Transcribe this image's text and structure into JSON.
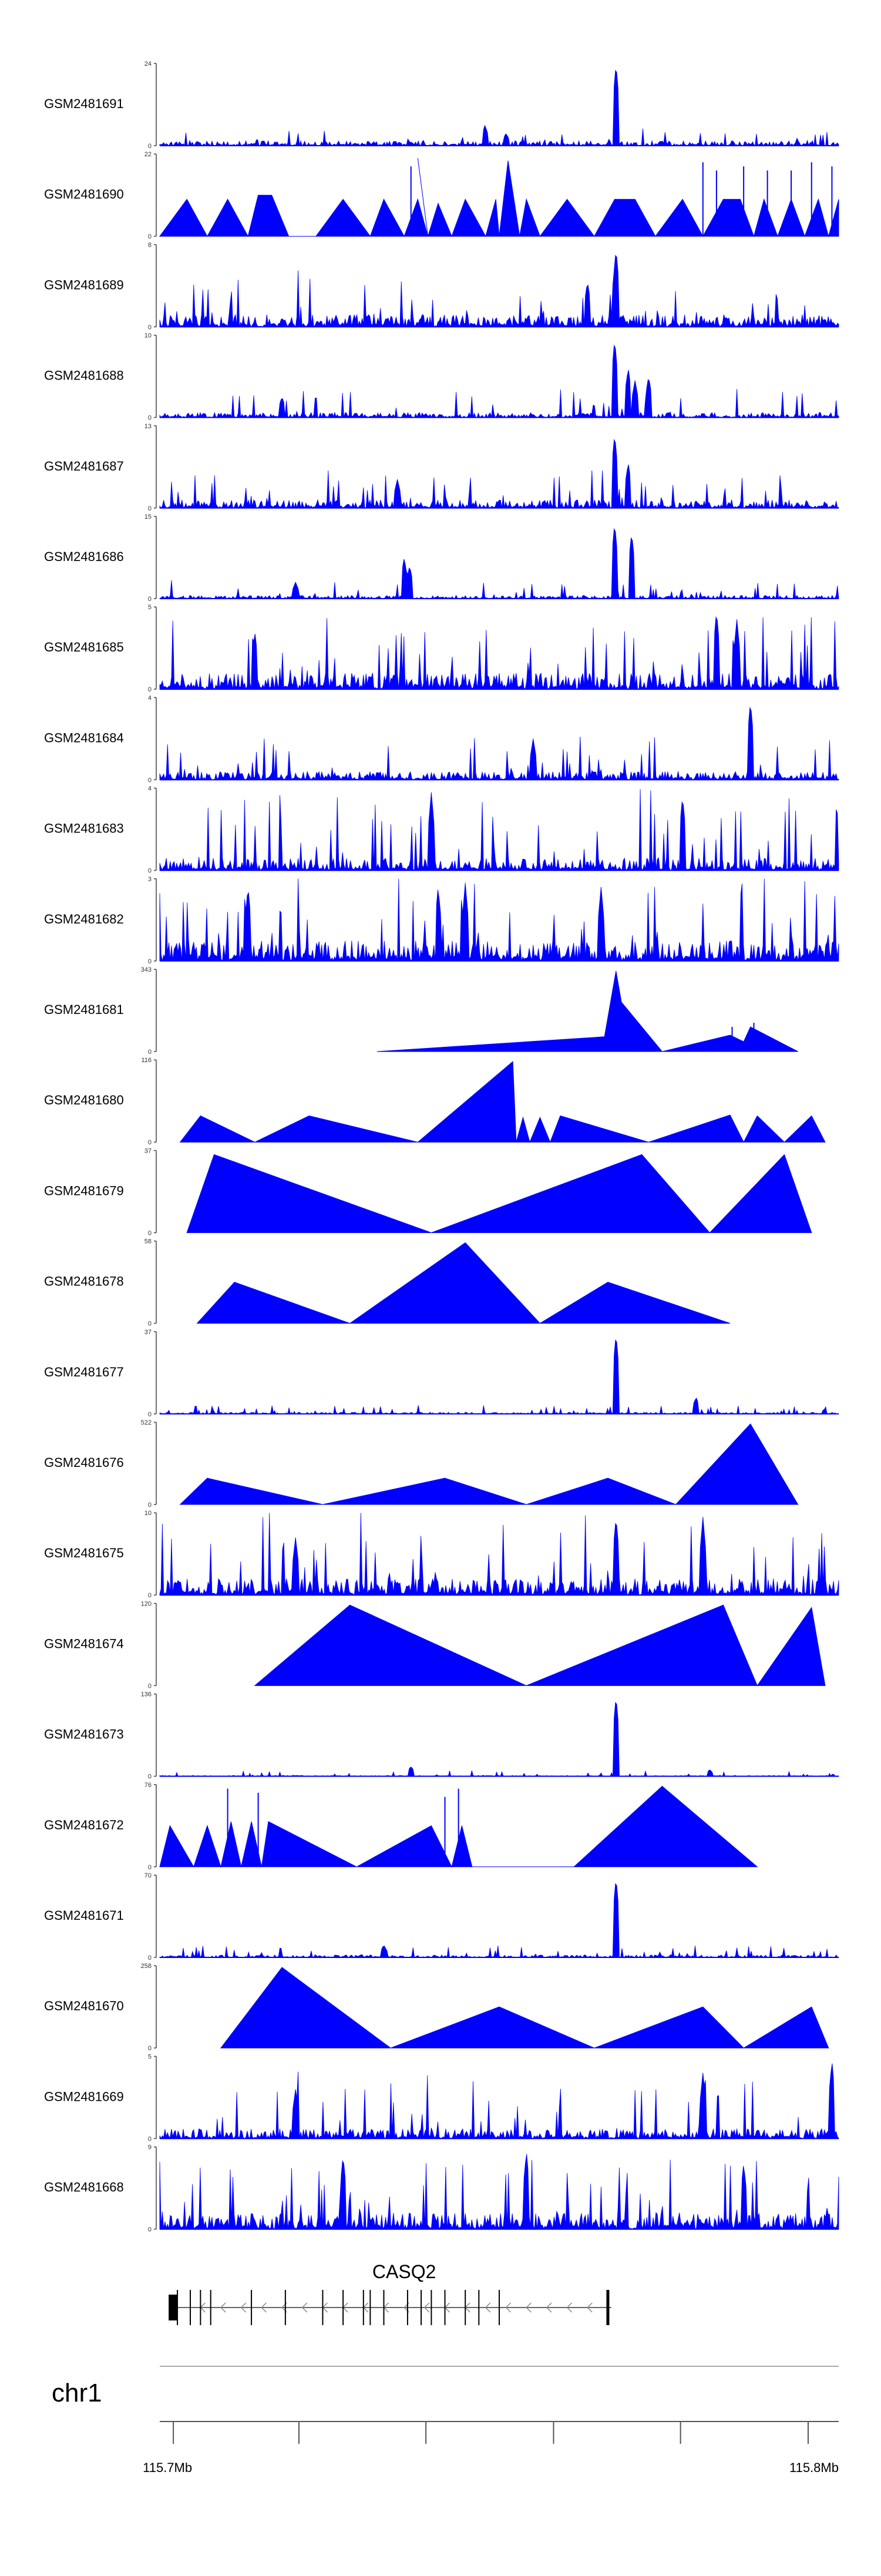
{
  "chart_data": {
    "type": "genome-browser-tracks",
    "track_type": "area",
    "track_color": "#0000ff",
    "tracks": [
      {
        "name": "GSM2481691",
        "ymax": "24",
        "ymin": "0",
        "shape": "dense",
        "seed": 11,
        "base": 0.06,
        "noise": 0.1,
        "peaks": [
          [
            0.672,
            1.0
          ],
          [
            0.479,
            0.25
          ],
          [
            0.51,
            0.15
          ]
        ]
      },
      {
        "name": "GSM2481690",
        "ymax": "22",
        "ymin": "0",
        "shape": "triangles",
        "seed": 12,
        "verts": [
          [
            0,
            0
          ],
          [
            0.04,
            0.45
          ],
          [
            0.07,
            0
          ],
          [
            0.1,
            0.45
          ],
          [
            0.13,
            0
          ],
          [
            0.145,
            0.5
          ],
          [
            0.165,
            0.5
          ],
          [
            0.19,
            0
          ],
          [
            0.23,
            0
          ],
          [
            0.27,
            0.45
          ],
          [
            0.31,
            0
          ],
          [
            0.33,
            0.45
          ],
          [
            0.36,
            0
          ],
          [
            0.38,
            0.45
          ],
          [
            0.395,
            0
          ],
          [
            0.38,
            0.95
          ],
          [
            0.395,
            0
          ],
          [
            0.41,
            0.4
          ],
          [
            0.43,
            0
          ],
          [
            0.45,
            0.45
          ],
          [
            0.48,
            0
          ],
          [
            0.495,
            0.45
          ],
          [
            0.5,
            0
          ],
          [
            0.513,
            0.92
          ],
          [
            0.53,
            0
          ],
          [
            0.54,
            0.45
          ],
          [
            0.56,
            0
          ],
          [
            0.6,
            0.45
          ],
          [
            0.64,
            0
          ],
          [
            0.67,
            0.45
          ],
          [
            0.7,
            0.45
          ],
          [
            0.73,
            0
          ],
          [
            0.77,
            0.45
          ],
          [
            0.8,
            0
          ],
          [
            0.83,
            0.45
          ],
          [
            0.855,
            0.45
          ],
          [
            0.875,
            0
          ],
          [
            0.89,
            0.45
          ],
          [
            0.91,
            0
          ],
          [
            0.93,
            0.45
          ],
          [
            0.95,
            0
          ],
          [
            0.97,
            0.45
          ],
          [
            0.985,
            0
          ],
          [
            1,
            0.45
          ],
          [
            1,
            0
          ]
        ],
        "spikes": [
          [
            0.37,
            0.85
          ],
          [
            0.8,
            0.9
          ],
          [
            0.82,
            0.8
          ],
          [
            0.86,
            0.85
          ],
          [
            0.895,
            0.8
          ],
          [
            0.93,
            0.8
          ],
          [
            0.96,
            0.9
          ],
          [
            0.99,
            0.85
          ]
        ]
      },
      {
        "name": "GSM2481689",
        "ymax": "8",
        "ymin": "0",
        "shape": "dense",
        "seed": 13,
        "base": 0.15,
        "noise": 0.35,
        "peaks": [
          [
            0.672,
            0.95
          ],
          [
            0.63,
            0.55
          ]
        ]
      },
      {
        "name": "GSM2481688",
        "ymax": "10",
        "ymin": "0",
        "shape": "dense",
        "seed": 14,
        "base": 0.06,
        "noise": 0.2,
        "peaks": [
          [
            0.67,
            0.95
          ],
          [
            0.69,
            0.6
          ],
          [
            0.7,
            0.45
          ],
          [
            0.72,
            0.5
          ],
          [
            0.18,
            0.25
          ]
        ]
      },
      {
        "name": "GSM2481687",
        "ymax": "13",
        "ymin": "0",
        "shape": "dense",
        "seed": 15,
        "base": 0.1,
        "noise": 0.25,
        "peaks": [
          [
            0.67,
            0.9
          ],
          [
            0.69,
            0.55
          ],
          [
            0.35,
            0.35
          ]
        ]
      },
      {
        "name": "GSM2481686",
        "ymax": "15",
        "ymin": "0",
        "shape": "dense",
        "seed": 16,
        "base": 0.04,
        "noise": 0.12,
        "peaks": [
          [
            0.67,
            0.92
          ],
          [
            0.695,
            0.8
          ],
          [
            0.36,
            0.5
          ],
          [
            0.368,
            0.4
          ],
          [
            0.2,
            0.2
          ]
        ]
      },
      {
        "name": "GSM2481685",
        "ymax": "5",
        "ymin": "0",
        "shape": "dense",
        "seed": 17,
        "base": 0.2,
        "noise": 0.5,
        "peaks": [
          [
            0.82,
            0.95
          ],
          [
            0.85,
            0.85
          ],
          [
            0.14,
            0.7
          ]
        ]
      },
      {
        "name": "GSM2481684",
        "ymax": "4",
        "ymin": "0",
        "shape": "dense",
        "seed": 18,
        "base": 0.1,
        "noise": 0.3,
        "peaks": [
          [
            0.87,
            0.95
          ],
          [
            0.55,
            0.5
          ]
        ]
      },
      {
        "name": "GSM2481683",
        "ymax": "4",
        "ymin": "0",
        "shape": "dense",
        "seed": 19,
        "base": 0.15,
        "noise": 0.55,
        "peaks": [
          [
            0.4,
            0.95
          ],
          [
            0.77,
            0.9
          ]
        ]
      },
      {
        "name": "GSM2481682",
        "ymax": "3",
        "ymin": "0",
        "shape": "dense",
        "seed": 20,
        "base": 0.25,
        "noise": 0.6,
        "peaks": [
          [
            0.13,
            0.9
          ],
          [
            0.41,
            0.9
          ],
          [
            0.45,
            0.95
          ],
          [
            0.65,
            0.9
          ]
        ]
      },
      {
        "name": "GSM2481681",
        "ymax": "343",
        "ymin": "0",
        "shape": "triangles",
        "seed": 21,
        "verts": [
          [
            0.32,
            0
          ],
          [
            0.655,
            0.18
          ],
          [
            0.672,
            0.98
          ],
          [
            0.68,
            0.6
          ],
          [
            0.74,
            0
          ],
          [
            0.84,
            0.2
          ],
          [
            0.86,
            0.12
          ],
          [
            0.87,
            0.3
          ],
          [
            0.94,
            0
          ]
        ],
        "spikes": [
          [
            0.843,
            0.3
          ],
          [
            0.875,
            0.35
          ]
        ]
      },
      {
        "name": "GSM2481680",
        "ymax": "116",
        "ymin": "0",
        "shape": "triangles",
        "seed": 22,
        "verts": [
          [
            0.03,
            0
          ],
          [
            0.06,
            0.32
          ],
          [
            0.14,
            0
          ],
          [
            0.22,
            0.32
          ],
          [
            0.38,
            0
          ],
          [
            0.52,
            0.98
          ],
          [
            0.525,
            0
          ],
          [
            0.535,
            0.3
          ],
          [
            0.545,
            0
          ],
          [
            0.56,
            0.3
          ],
          [
            0.575,
            0
          ],
          [
            0.59,
            0.32
          ],
          [
            0.72,
            0
          ],
          [
            0.84,
            0.33
          ],
          [
            0.86,
            0
          ],
          [
            0.88,
            0.32
          ],
          [
            0.92,
            0
          ],
          [
            0.96,
            0.32
          ],
          [
            0.98,
            0
          ]
        ],
        "spikes": []
      },
      {
        "name": "GSM2481679",
        "ymax": "37",
        "ymin": "0",
        "shape": "triangles",
        "seed": 23,
        "verts": [
          [
            0.04,
            0
          ],
          [
            0.08,
            0.95
          ],
          [
            0.4,
            0
          ],
          [
            0.71,
            0.95
          ],
          [
            0.81,
            0
          ],
          [
            0.92,
            0.95
          ],
          [
            0.96,
            0
          ]
        ],
        "spikes": [
          [
            0.085,
            0.8
          ]
        ]
      },
      {
        "name": "GSM2481678",
        "ymax": "58",
        "ymin": "0",
        "shape": "triangles",
        "seed": 24,
        "verts": [
          [
            0.055,
            0
          ],
          [
            0.11,
            0.5
          ],
          [
            0.28,
            0
          ],
          [
            0.45,
            0.98
          ],
          [
            0.56,
            0
          ],
          [
            0.66,
            0.5
          ],
          [
            0.84,
            0
          ]
        ],
        "spikes": [
          [
            0.115,
            0.35
          ]
        ]
      },
      {
        "name": "GSM2481677",
        "ymax": "37",
        "ymin": "0",
        "shape": "dense",
        "seed": 25,
        "base": 0.02,
        "noise": 0.06,
        "peaks": [
          [
            0.672,
            0.98
          ],
          [
            0.79,
            0.2
          ]
        ]
      },
      {
        "name": "GSM2481676",
        "ymax": "522",
        "ymin": "0",
        "shape": "triangles",
        "seed": 26,
        "verts": [
          [
            0.03,
            0
          ],
          [
            0.07,
            0.32
          ],
          [
            0.24,
            0
          ],
          [
            0.42,
            0.32
          ],
          [
            0.54,
            0
          ],
          [
            0.66,
            0.32
          ],
          [
            0.76,
            0
          ],
          [
            0.87,
            0.98
          ],
          [
            0.94,
            0
          ]
        ],
        "spikes": []
      },
      {
        "name": "GSM2481675",
        "ymax": "10",
        "ymin": "0",
        "shape": "dense",
        "seed": 27,
        "base": 0.2,
        "noise": 0.55,
        "peaks": [
          [
            0.672,
            0.95
          ],
          [
            0.8,
            0.95
          ],
          [
            0.2,
            0.7
          ]
        ]
      },
      {
        "name": "GSM2481674",
        "ymax": "120",
        "ymin": "0",
        "shape": "triangles",
        "seed": 28,
        "verts": [
          [
            0.14,
            0
          ],
          [
            0.28,
            0.98
          ],
          [
            0.54,
            0
          ],
          [
            0.83,
            0.98
          ],
          [
            0.88,
            0
          ],
          [
            0.96,
            0.95
          ],
          [
            0.98,
            0
          ]
        ],
        "spikes": [
          [
            0.285,
            0.7
          ]
        ]
      },
      {
        "name": "GSM2481673",
        "ymax": "136",
        "ymin": "0",
        "shape": "dense",
        "seed": 29,
        "base": 0.01,
        "noise": 0.04,
        "peaks": [
          [
            0.672,
            0.98
          ],
          [
            0.37,
            0.12
          ],
          [
            0.81,
            0.08
          ]
        ]
      },
      {
        "name": "GSM2481672",
        "ymax": "76",
        "ymin": "0",
        "shape": "triangles",
        "seed": 30,
        "verts": [
          [
            0,
            0
          ],
          [
            0.015,
            0.5
          ],
          [
            0.05,
            0
          ],
          [
            0.07,
            0.5
          ],
          [
            0.09,
            0
          ],
          [
            0.105,
            0.55
          ],
          [
            0.12,
            0
          ],
          [
            0.135,
            0.55
          ],
          [
            0.15,
            0
          ],
          [
            0.16,
            0.55
          ],
          [
            0.29,
            0
          ],
          [
            0.4,
            0.5
          ],
          [
            0.43,
            0
          ],
          [
            0.445,
            0.5
          ],
          [
            0.46,
            0
          ],
          [
            0.61,
            0
          ],
          [
            0.74,
            0.98
          ],
          [
            0.88,
            0
          ]
        ],
        "spikes": [
          [
            0.1,
            0.95
          ],
          [
            0.145,
            0.9
          ],
          [
            0.42,
            0.85
          ],
          [
            0.44,
            0.95
          ]
        ]
      },
      {
        "name": "GSM2481671",
        "ymax": "70",
        "ymin": "0",
        "shape": "dense",
        "seed": 31,
        "base": 0.03,
        "noise": 0.08,
        "peaks": [
          [
            0.672,
            0.98
          ],
          [
            0.33,
            0.15
          ]
        ]
      },
      {
        "name": "GSM2481670",
        "ymax": "258",
        "ymin": "0",
        "shape": "triangles",
        "seed": 32,
        "verts": [
          [
            0.09,
            0
          ],
          [
            0.18,
            0.98
          ],
          [
            0.34,
            0
          ],
          [
            0.5,
            0.5
          ],
          [
            0.64,
            0
          ],
          [
            0.8,
            0.5
          ],
          [
            0.86,
            0
          ],
          [
            0.96,
            0.5
          ],
          [
            0.985,
            0
          ]
        ],
        "spikes": []
      },
      {
        "name": "GSM2481669",
        "ymax": "5",
        "ymin": "0",
        "shape": "dense",
        "seed": 33,
        "base": 0.12,
        "noise": 0.45,
        "peaks": [
          [
            0.99,
            0.95
          ],
          [
            0.8,
            0.8
          ],
          [
            0.2,
            0.6
          ]
        ]
      },
      {
        "name": "GSM2481668",
        "ymax": "9",
        "ymin": "0",
        "shape": "dense",
        "seed": 34,
        "base": 0.2,
        "noise": 0.5,
        "peaks": [
          [
            0.27,
            0.9
          ],
          [
            0.54,
            0.95
          ],
          [
            0.86,
            0.8
          ]
        ]
      }
    ],
    "gene": {
      "name": "CASQ2",
      "strand": "-",
      "start_frac": 0.02,
      "end_frac": 0.665,
      "exons": [
        0.02,
        0.026,
        0.045,
        0.06,
        0.075,
        0.135,
        0.185,
        0.24,
        0.27,
        0.3,
        0.31,
        0.33,
        0.365,
        0.385,
        0.4,
        0.42,
        0.45,
        0.47,
        0.5,
        0.66
      ]
    },
    "chromosome": "chr1",
    "axis": {
      "start": "115.7Mb",
      "end": "115.8Mb",
      "ticks": [
        0.02,
        0.205,
        0.392,
        0.58,
        0.767,
        0.955
      ]
    }
  }
}
